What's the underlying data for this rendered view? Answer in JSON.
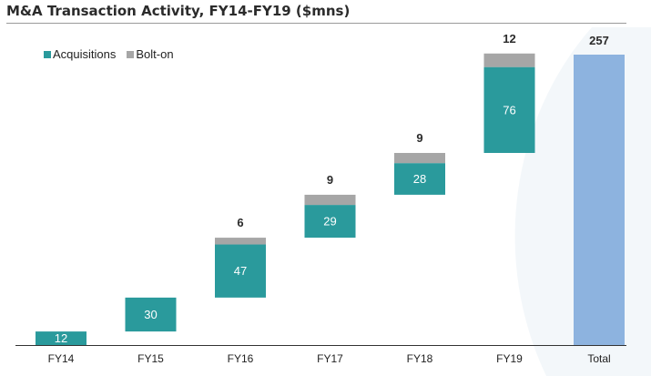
{
  "colors": {
    "acquisitions": "#2a9a9c",
    "bolt_on": "#a6a6a6",
    "total": "#8db3df",
    "total_text": "#2b2b2b",
    "inner_label": "#ffffff",
    "axis": "#333333"
  },
  "chart_data": {
    "type": "bar",
    "title": "M&A Transaction Activity, FY14-FY19 ($mns)",
    "categories": [
      "FY14",
      "FY15",
      "FY16",
      "FY17",
      "FY18",
      "FY19",
      "Total"
    ],
    "series": [
      {
        "name": "Acquisitions",
        "values": [
          12,
          30,
          47,
          29,
          28,
          76,
          null
        ]
      },
      {
        "name": "Bolt-on",
        "values": [
          0,
          0,
          6,
          9,
          9,
          12,
          null
        ]
      }
    ],
    "total": {
      "label": "Total",
      "value": 257
    },
    "waterfall": true,
    "ylim": [
      0,
      257
    ],
    "legend": {
      "position": "top-left",
      "items": [
        "Acquisitions",
        "Bolt-on"
      ]
    }
  }
}
